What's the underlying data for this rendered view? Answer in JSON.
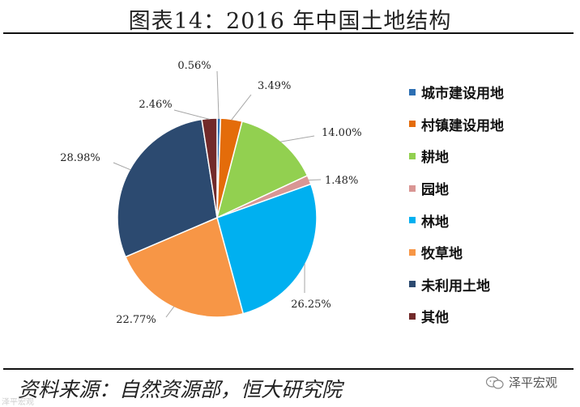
{
  "title": "图表14：2016 年中国土地结构",
  "source_note": "资料来源：自然资源部，恒大研究院",
  "brand": {
    "name": "泽平宏观",
    "icon": "wechat-icon",
    "watermark": "泽平宏观"
  },
  "chart_data": {
    "type": "pie",
    "title": "",
    "slices": [
      {
        "label": "城市建设用地",
        "value": 0.56,
        "display": "0.56%",
        "color": "#2d6fb3"
      },
      {
        "label": "村镇建设用地",
        "value": 3.49,
        "display": "3.49%",
        "color": "#e46c0a"
      },
      {
        "label": "耕地",
        "value": 14.0,
        "display": "14.00%",
        "color": "#92d050"
      },
      {
        "label": "园地",
        "value": 1.48,
        "display": "1.48%",
        "color": "#d99694"
      },
      {
        "label": "林地",
        "value": 26.25,
        "display": "26.25%",
        "color": "#00b0f0"
      },
      {
        "label": "牧草地",
        "value": 22.77,
        "display": "22.77%",
        "color": "#f79646"
      },
      {
        "label": "未利用土地",
        "value": 28.98,
        "display": "28.98%",
        "color": "#2c4a70"
      },
      {
        "label": "其他",
        "value": 2.46,
        "display": "2.46%",
        "color": "#722a2a"
      }
    ],
    "start": "12 o'clock",
    "direction": "clockwise",
    "legend_position": "right"
  }
}
